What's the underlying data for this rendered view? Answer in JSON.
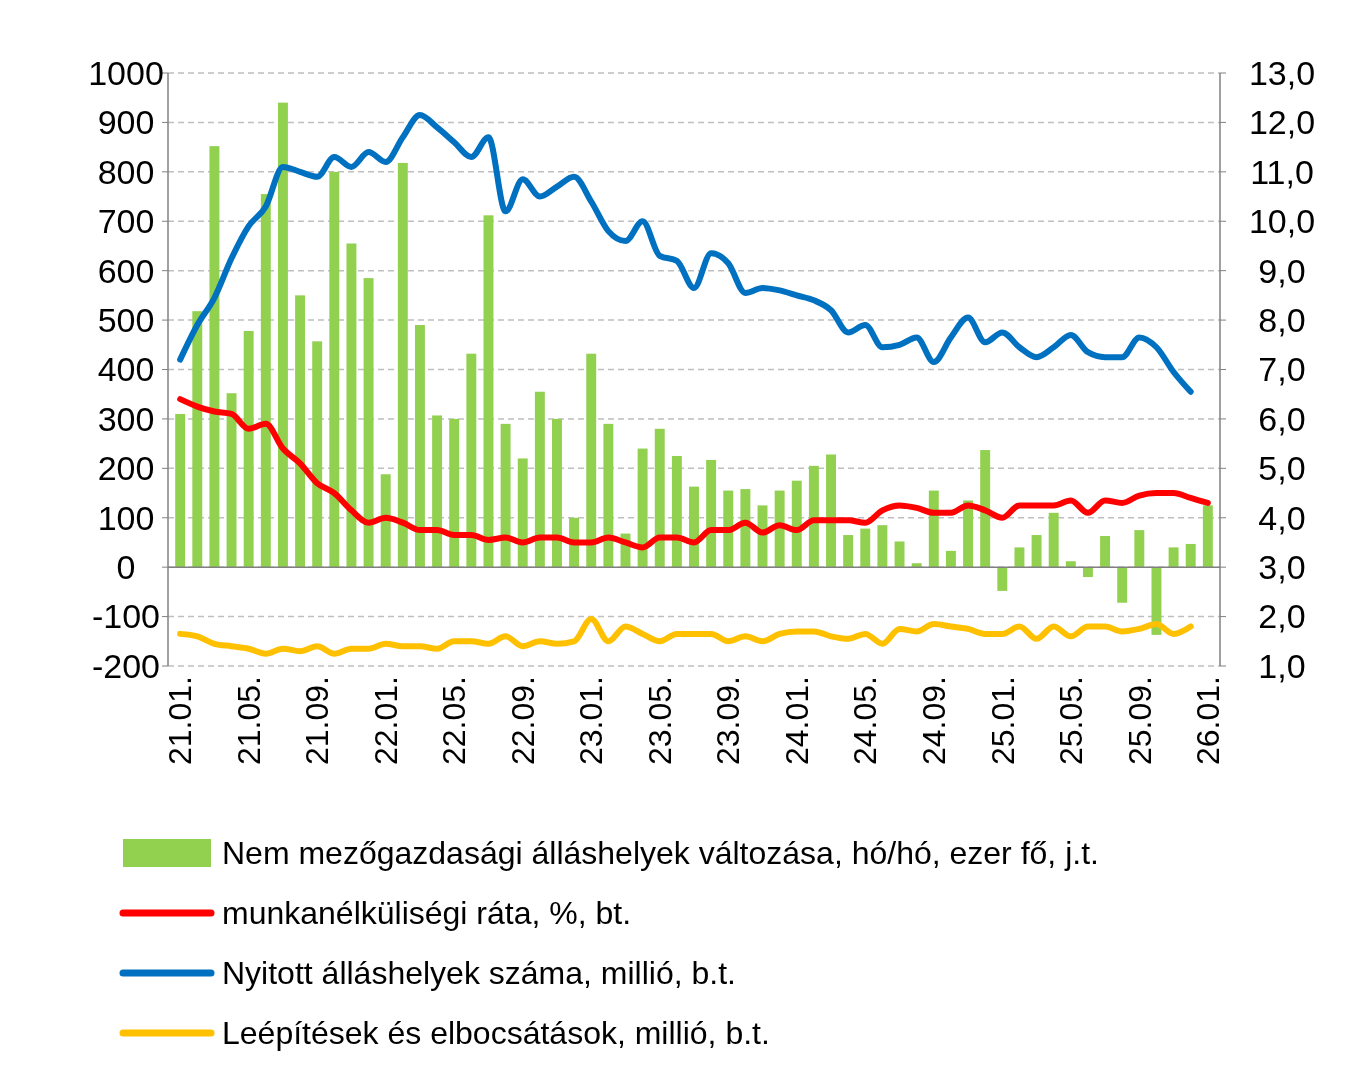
{
  "chart_data": {
    "type": "bar",
    "categories": [
      "21.01.",
      null,
      null,
      null,
      "21.05.",
      null,
      null,
      null,
      "21.09.",
      null,
      null,
      null,
      "22.01.",
      null,
      null,
      null,
      "22.05.",
      null,
      null,
      null,
      "22.09.",
      null,
      null,
      null,
      "23.01.",
      null,
      null,
      null,
      "23.05.",
      null,
      null,
      null,
      "23.09.",
      null,
      null,
      null,
      "24.01.",
      null,
      null,
      null,
      "24.05.",
      null,
      null,
      null,
      "24.09.",
      null,
      null,
      null,
      "25.01.",
      null,
      null,
      null,
      "25.05.",
      null,
      null,
      null,
      "25.09.",
      null,
      null,
      null,
      "26.01."
    ],
    "series": [
      {
        "name": "Nem mezőgazdasági álláshelyek változása, hó/hó, ezer fő, j.t.",
        "color": "#92d050",
        "values": [
          310,
          518,
          852,
          352,
          478,
          755,
          940,
          550,
          457,
          800,
          655,
          585,
          188,
          818,
          490,
          307,
          300,
          432,
          712,
          290,
          220,
          355,
          300,
          100,
          432,
          290,
          68,
          240,
          280,
          225,
          163,
          217,
          155,
          158,
          125,
          155,
          175,
          205,
          228,
          65,
          78,
          85,
          52,
          8,
          155,
          33,
          135,
          237,
          -48,
          40,
          65,
          110,
          12,
          -20,
          63,
          -72,
          75,
          -137,
          40,
          47,
          125
        ]
      },
      {
        "name": "munkanélküliségi ráta, %, bt.",
        "type": "line",
        "axis": "y2",
        "color": "#ff0000",
        "values": [
          6.4,
          6.25,
          6.15,
          6.1,
          5.8,
          5.9,
          5.4,
          5.1,
          4.7,
          4.5,
          4.15,
          3.9,
          4.0,
          3.9,
          3.75,
          3.75,
          3.65,
          3.65,
          3.55,
          3.6,
          3.5,
          3.6,
          3.6,
          3.5,
          3.5,
          3.6,
          3.5,
          3.4,
          3.6,
          3.6,
          3.5,
          3.75,
          3.75,
          3.9,
          3.7,
          3.85,
          3.75,
          3.95,
          3.95,
          3.95,
          3.9,
          4.15,
          4.25,
          4.2,
          4.1,
          4.1,
          4.25,
          4.15,
          4.0,
          4.25,
          4.25,
          4.25,
          4.35,
          4.1,
          4.35,
          4.3,
          4.45,
          4.5,
          4.5,
          4.4,
          4.3
        ]
      },
      {
        "name": "Nyitott álláshelyek száma, millió, b.t.",
        "type": "line",
        "axis": "y2",
        "color": "#0070c0",
        "values": [
          7.2,
          7.9,
          8.45,
          9.25,
          9.9,
          10.3,
          11.1,
          11.0,
          10.9,
          11.3,
          11.1,
          11.4,
          11.2,
          11.7,
          12.15,
          11.9,
          11.6,
          11.3,
          11.7,
          10.2,
          10.85,
          10.5,
          10.7,
          10.9,
          10.4,
          9.8,
          9.6,
          10.0,
          9.3,
          9.2,
          8.65,
          9.35,
          9.15,
          8.55,
          8.65,
          8.6,
          8.5,
          8.4,
          8.2,
          7.75,
          7.9,
          7.45,
          7.5,
          7.65,
          7.15,
          7.65,
          8.05,
          7.55,
          7.75,
          7.45,
          7.25,
          7.45,
          7.7,
          7.35,
          7.25,
          7.25,
          7.65,
          7.45,
          6.95,
          6.55,
          null
        ]
      },
      {
        "name": "Leépítések és elbocsátások, millió, b.t.",
        "type": "line",
        "axis": "y2",
        "color": "#ffc000",
        "values": [
          1.65,
          1.6,
          1.45,
          1.4,
          1.35,
          1.25,
          1.35,
          1.3,
          1.4,
          1.25,
          1.35,
          1.35,
          1.45,
          1.4,
          1.4,
          1.35,
          1.5,
          1.5,
          1.45,
          1.6,
          1.4,
          1.5,
          1.45,
          1.5,
          1.95,
          1.5,
          1.8,
          1.65,
          1.5,
          1.65,
          1.65,
          1.65,
          1.5,
          1.6,
          1.5,
          1.65,
          1.7,
          1.7,
          1.6,
          1.55,
          1.65,
          1.45,
          1.75,
          1.7,
          1.85,
          1.8,
          1.75,
          1.65,
          1.65,
          1.8,
          1.55,
          1.8,
          1.6,
          1.8,
          1.8,
          1.7,
          1.75,
          1.85,
          1.65,
          1.8,
          null
        ]
      }
    ],
    "ylim": [
      -200,
      1000
    ],
    "yticks": [
      -200,
      -100,
      0,
      100,
      200,
      300,
      400,
      500,
      600,
      700,
      800,
      900,
      1000
    ],
    "y2lim": [
      1,
      13
    ],
    "y2ticks": [
      {
        "value": 1,
        "label": "1,0"
      },
      {
        "value": 2,
        "label": "2,0"
      },
      {
        "value": 3,
        "label": "3,0"
      },
      {
        "value": 4,
        "label": "4,0"
      },
      {
        "value": 5,
        "label": "5,0"
      },
      {
        "value": 6,
        "label": "6,0"
      },
      {
        "value": 7,
        "label": "7,0"
      },
      {
        "value": 8,
        "label": "8,0"
      },
      {
        "value": 9,
        "label": "9,0"
      },
      {
        "value": 10,
        "label": "10,0"
      },
      {
        "value": 11,
        "label": "11,0"
      },
      {
        "value": 12,
        "label": "12,0"
      },
      {
        "value": 13,
        "label": "13,0"
      }
    ],
    "grid": "y",
    "legend": "bottom"
  }
}
